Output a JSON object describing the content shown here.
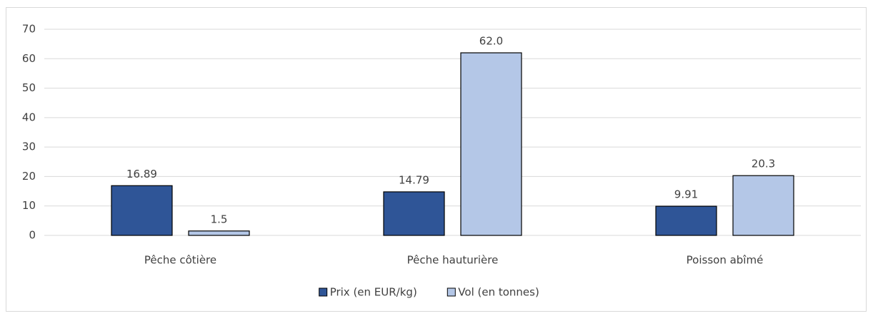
{
  "chart_data": {
    "type": "bar",
    "categories": [
      "Pêche côtière",
      "Pêche hauturière",
      "Poisson abîmé"
    ],
    "series": [
      {
        "name": "Prix (en EUR/kg)",
        "color": "#2f5597",
        "values": [
          16.89,
          14.79,
          9.91
        ]
      },
      {
        "name": "Vol (en tonnes)",
        "color": "#b4c7e7",
        "values": [
          1.5,
          62.0,
          20.3
        ],
        "value_labels": [
          "1.5",
          "62.0",
          "20.3"
        ]
      }
    ],
    "ylim": [
      0,
      70
    ],
    "yticks": [
      0,
      10,
      20,
      30,
      40,
      50,
      60,
      70
    ],
    "grid": true,
    "legend": "bottom"
  }
}
